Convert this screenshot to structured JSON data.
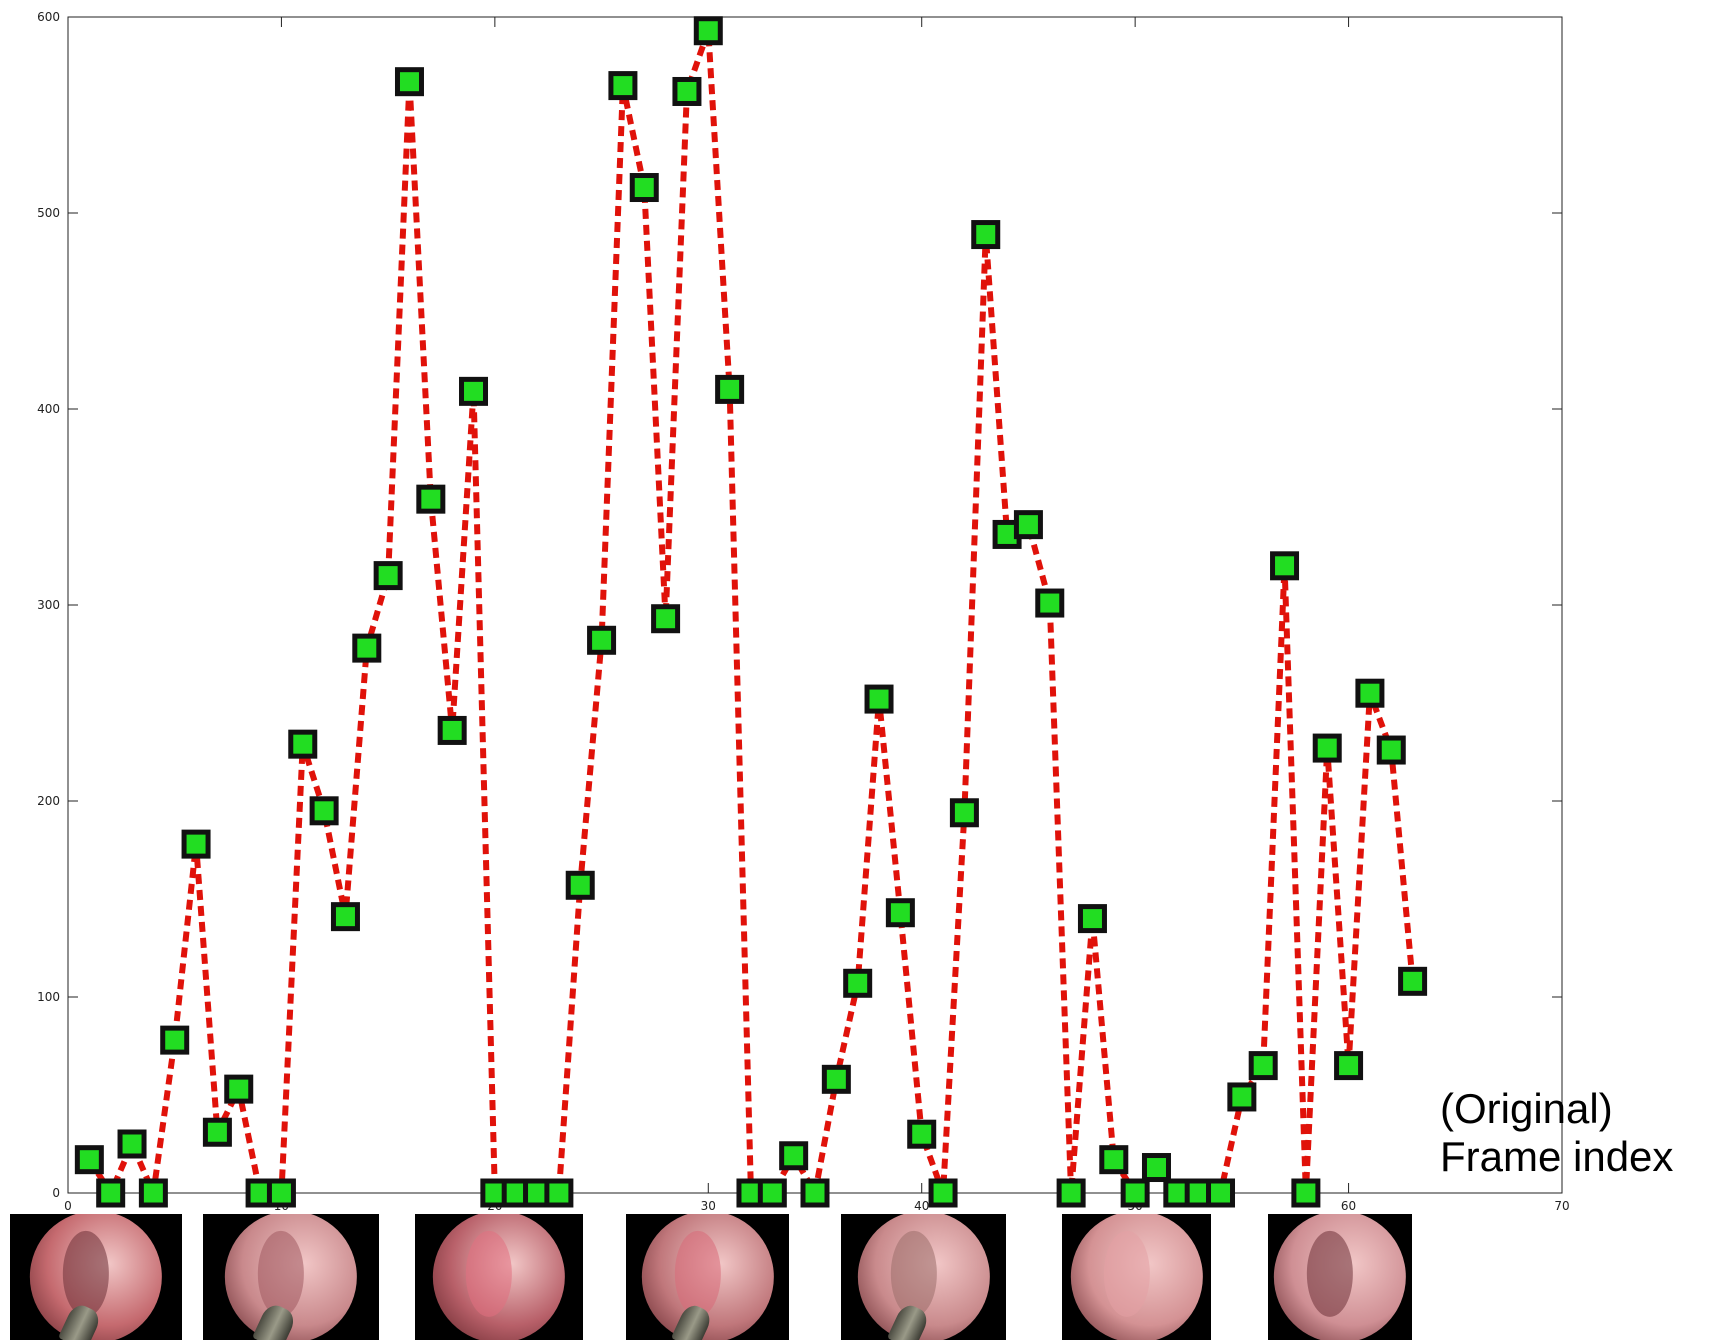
{
  "chart_data": {
    "type": "line",
    "title": "",
    "xlabel": "(Original)\nFrame index",
    "ylabel": "",
    "xlim": [
      0,
      70
    ],
    "ylim": [
      0,
      600
    ],
    "xticks": [
      0,
      10,
      20,
      30,
      40,
      50,
      60,
      70
    ],
    "yticks": [
      0,
      100,
      200,
      300,
      400,
      500,
      600
    ],
    "series": [
      {
        "line_color": "#e0120a",
        "line_style": "dashed",
        "marker": "square",
        "marker_face": "#22dd22",
        "marker_edge": "#111111",
        "points": [
          [
            1,
            17
          ],
          [
            2,
            0
          ],
          [
            3,
            25
          ],
          [
            4,
            0
          ],
          [
            5,
            78
          ],
          [
            6,
            178
          ],
          [
            7,
            31
          ],
          [
            8,
            53
          ],
          [
            9,
            0
          ],
          [
            10,
            0
          ],
          [
            11,
            229
          ],
          [
            12,
            195
          ],
          [
            13,
            141
          ],
          [
            14,
            278
          ],
          [
            15,
            315
          ],
          [
            16,
            567
          ],
          [
            17,
            354
          ],
          [
            18,
            236
          ],
          [
            19,
            409
          ],
          [
            20,
            0
          ],
          [
            21,
            0
          ],
          [
            22,
            0
          ],
          [
            23,
            0
          ],
          [
            24,
            157
          ],
          [
            25,
            282
          ],
          [
            26,
            565
          ],
          [
            27,
            513
          ],
          [
            28,
            293
          ],
          [
            29,
            562
          ],
          [
            30,
            593
          ],
          [
            31,
            410
          ],
          [
            32,
            0
          ],
          [
            33,
            0
          ],
          [
            34,
            19
          ],
          [
            35,
            0
          ],
          [
            36,
            58
          ],
          [
            37,
            107
          ],
          [
            38,
            252
          ],
          [
            39,
            143
          ],
          [
            40,
            30
          ],
          [
            41,
            0
          ],
          [
            42,
            194
          ],
          [
            43,
            489
          ],
          [
            44,
            336
          ],
          [
            45,
            341
          ],
          [
            46,
            301
          ],
          [
            47,
            0
          ],
          [
            48,
            140
          ],
          [
            49,
            17
          ],
          [
            50,
            0
          ],
          [
            51,
            13
          ],
          [
            52,
            0
          ],
          [
            53,
            0
          ],
          [
            54,
            0
          ],
          [
            55,
            49
          ],
          [
            56,
            65
          ],
          [
            57,
            320
          ],
          [
            58,
            0
          ],
          [
            59,
            227
          ],
          [
            60,
            65
          ],
          [
            61,
            255
          ],
          [
            62,
            226
          ],
          [
            63,
            108
          ]
        ]
      }
    ],
    "grid": false
  },
  "thumbnails": [
    {
      "name": "frame-thumbnail-1",
      "disc": "#c56a6f",
      "fold": "#6b3036",
      "tool": true
    },
    {
      "name": "frame-thumbnail-2",
      "disc": "#c9898c",
      "fold": "#a05a60",
      "tool": true
    },
    {
      "name": "frame-thumbnail-3",
      "disc": "#b86069",
      "fold": "#e2707f",
      "tool": false
    },
    {
      "name": "frame-thumbnail-4",
      "disc": "#c0777b",
      "fold": "#d86a78",
      "tool": true
    },
    {
      "name": "frame-thumbnail-5",
      "disc": "#c98a8c",
      "fold": "#9b6e6a",
      "tool": true
    },
    {
      "name": "frame-thumbnail-6",
      "disc": "#d49294",
      "fold": "#e3a0a4",
      "tool": false
    },
    {
      "name": "frame-thumbnail-7",
      "disc": "#cf8f94",
      "fold": "#6d3138",
      "tool": false
    }
  ]
}
